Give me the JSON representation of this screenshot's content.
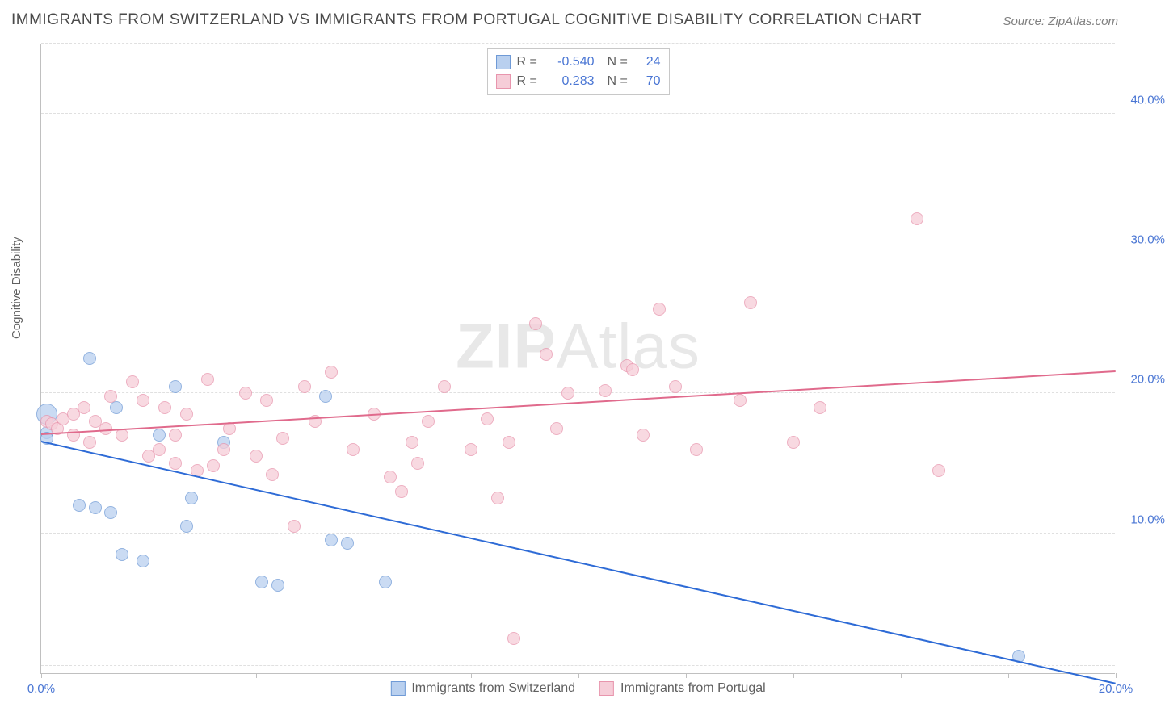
{
  "title": "IMMIGRANTS FROM SWITZERLAND VS IMMIGRANTS FROM PORTUGAL COGNITIVE DISABILITY CORRELATION CHART",
  "source": "Source: ZipAtlas.com",
  "watermark_bold": "ZIP",
  "watermark_rest": "Atlas",
  "ylabel": "Cognitive Disability",
  "chart": {
    "type": "scatter",
    "xlim": [
      0,
      20
    ],
    "ylim": [
      0,
      45
    ],
    "x_ticks": [
      0,
      20
    ],
    "x_tick_labels": [
      "0.0%",
      "20.0%"
    ],
    "x_minor_ticks": [
      2,
      4,
      6,
      8,
      10,
      12,
      14,
      16,
      18
    ],
    "y_ticks": [
      10,
      20,
      30,
      40
    ],
    "y_tick_labels": [
      "10.0%",
      "20.0%",
      "30.0%",
      "40.0%"
    ],
    "y_grid": [
      0.5,
      10,
      20,
      30,
      40,
      45
    ],
    "background_color": "#ffffff",
    "grid_color": "#e0e0e0",
    "axis_color": "#c0c0c0",
    "tick_label_color": "#4a76d4",
    "point_radius": 8,
    "point_opacity": 0.75,
    "series": [
      {
        "name": "Immigrants from Switzerland",
        "fill": "#b9d0ef",
        "stroke": "#6f9ad6",
        "line_color": "#2e6bd6",
        "R": "-0.540",
        "N": "24",
        "trend": {
          "x1": 0,
          "y1": 16.5,
          "x2": 20,
          "y2": -0.8
        },
        "points": [
          {
            "x": 0.1,
            "y": 18.5,
            "r": 13
          },
          {
            "x": 0.1,
            "y": 17.2
          },
          {
            "x": 0.1,
            "y": 16.8
          },
          {
            "x": 0.9,
            "y": 22.5
          },
          {
            "x": 0.7,
            "y": 12.0
          },
          {
            "x": 1.0,
            "y": 11.8
          },
          {
            "x": 1.3,
            "y": 11.5
          },
          {
            "x": 1.4,
            "y": 19.0
          },
          {
            "x": 1.5,
            "y": 8.5
          },
          {
            "x": 1.9,
            "y": 8.0
          },
          {
            "x": 2.2,
            "y": 17.0
          },
          {
            "x": 2.5,
            "y": 20.5
          },
          {
            "x": 2.8,
            "y": 12.5
          },
          {
            "x": 2.7,
            "y": 10.5
          },
          {
            "x": 3.4,
            "y": 16.5
          },
          {
            "x": 4.1,
            "y": 6.5
          },
          {
            "x": 4.4,
            "y": 6.3
          },
          {
            "x": 5.3,
            "y": 19.8
          },
          {
            "x": 5.4,
            "y": 9.5
          },
          {
            "x": 5.7,
            "y": 9.3
          },
          {
            "x": 6.4,
            "y": 6.5
          },
          {
            "x": 18.2,
            "y": 1.2
          }
        ]
      },
      {
        "name": "Immigrants from Portugal",
        "fill": "#f6cdd8",
        "stroke": "#e895ad",
        "line_color": "#e06a8c",
        "R": "0.283",
        "N": "70",
        "trend": {
          "x1": 0,
          "y1": 17.0,
          "x2": 20,
          "y2": 21.5
        },
        "points": [
          {
            "x": 0.1,
            "y": 18.0
          },
          {
            "x": 0.2,
            "y": 17.8
          },
          {
            "x": 0.3,
            "y": 17.5
          },
          {
            "x": 0.4,
            "y": 18.2
          },
          {
            "x": 0.6,
            "y": 18.5
          },
          {
            "x": 0.6,
            "y": 17.0
          },
          {
            "x": 0.8,
            "y": 19.0
          },
          {
            "x": 0.9,
            "y": 16.5
          },
          {
            "x": 1.0,
            "y": 18.0
          },
          {
            "x": 1.2,
            "y": 17.5
          },
          {
            "x": 1.3,
            "y": 19.8
          },
          {
            "x": 1.5,
            "y": 17.0
          },
          {
            "x": 1.7,
            "y": 20.8
          },
          {
            "x": 1.9,
            "y": 19.5
          },
          {
            "x": 2.0,
            "y": 15.5
          },
          {
            "x": 2.2,
            "y": 16.0
          },
          {
            "x": 2.3,
            "y": 19.0
          },
          {
            "x": 2.5,
            "y": 17.0
          },
          {
            "x": 2.5,
            "y": 15.0
          },
          {
            "x": 2.7,
            "y": 18.5
          },
          {
            "x": 2.9,
            "y": 14.5
          },
          {
            "x": 3.1,
            "y": 21.0
          },
          {
            "x": 3.2,
            "y": 14.8
          },
          {
            "x": 3.4,
            "y": 16.0
          },
          {
            "x": 3.5,
            "y": 17.5
          },
          {
            "x": 3.8,
            "y": 20.0
          },
          {
            "x": 4.0,
            "y": 15.5
          },
          {
            "x": 4.2,
            "y": 19.5
          },
          {
            "x": 4.3,
            "y": 14.2
          },
          {
            "x": 4.5,
            "y": 16.8
          },
          {
            "x": 4.7,
            "y": 10.5
          },
          {
            "x": 4.9,
            "y": 20.5
          },
          {
            "x": 5.1,
            "y": 18.0
          },
          {
            "x": 5.4,
            "y": 21.5
          },
          {
            "x": 5.8,
            "y": 16.0
          },
          {
            "x": 6.2,
            "y": 18.5
          },
          {
            "x": 6.5,
            "y": 14.0
          },
          {
            "x": 6.7,
            "y": 13.0
          },
          {
            "x": 6.9,
            "y": 16.5
          },
          {
            "x": 7.0,
            "y": 15.0
          },
          {
            "x": 7.2,
            "y": 18.0
          },
          {
            "x": 7.5,
            "y": 20.5
          },
          {
            "x": 8.0,
            "y": 16.0
          },
          {
            "x": 8.3,
            "y": 18.2
          },
          {
            "x": 8.5,
            "y": 12.5
          },
          {
            "x": 8.7,
            "y": 16.5
          },
          {
            "x": 8.8,
            "y": 2.5
          },
          {
            "x": 9.2,
            "y": 25.0
          },
          {
            "x": 9.4,
            "y": 22.8
          },
          {
            "x": 9.6,
            "y": 17.5
          },
          {
            "x": 9.8,
            "y": 20.0
          },
          {
            "x": 10.5,
            "y": 20.2
          },
          {
            "x": 10.9,
            "y": 22.0
          },
          {
            "x": 11.0,
            "y": 21.7
          },
          {
            "x": 11.2,
            "y": 17.0
          },
          {
            "x": 11.5,
            "y": 26.0
          },
          {
            "x": 11.8,
            "y": 20.5
          },
          {
            "x": 12.2,
            "y": 16.0
          },
          {
            "x": 13.0,
            "y": 19.5
          },
          {
            "x": 13.2,
            "y": 26.5
          },
          {
            "x": 14.0,
            "y": 16.5
          },
          {
            "x": 14.5,
            "y": 19.0
          },
          {
            "x": 16.3,
            "y": 32.5
          },
          {
            "x": 16.7,
            "y": 14.5
          }
        ]
      }
    ]
  },
  "legend_r_label": "R =",
  "legend_n_label": "N ="
}
